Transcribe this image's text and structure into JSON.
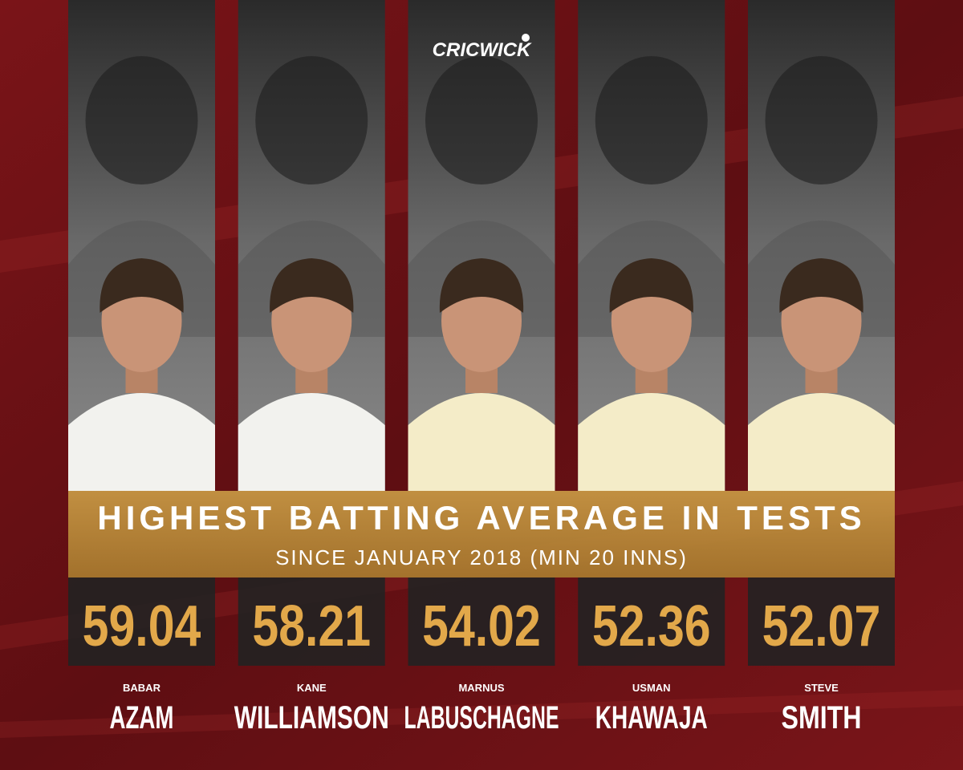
{
  "brand": "CRICWICK",
  "title": "HIGHEST BATTING AVERAGE IN TESTS",
  "subtitle": "SINCE JANUARY 2018 (MIN 20 INNS)",
  "players": [
    {
      "first": "BABAR",
      "last": "AZAM",
      "average": 59.04
    },
    {
      "first": "KANE",
      "last": "WILLIAMSON",
      "average": 58.21
    },
    {
      "first": "MARNUS",
      "last": "LABUSCHAGNE",
      "average": 54.02
    },
    {
      "first": "USMAN",
      "last": "KHAWAJA",
      "average": 52.36
    },
    {
      "first": "STEVE",
      "last": "SMITH",
      "average": 52.07
    }
  ]
}
